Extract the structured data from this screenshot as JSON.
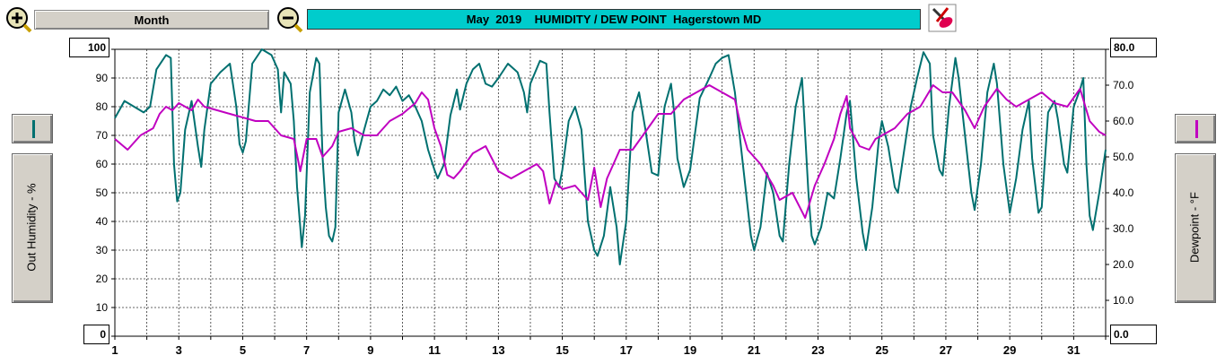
{
  "toolbar": {
    "zoom_in_icon": "zoom-in-magnifier-icon",
    "zoom_out_icon": "zoom-out-magnifier-icon",
    "period_label": "Month",
    "title": "May  2019    HUMIDITY / DEW POINT  Hagerstown MD",
    "settings_icon": "eraser-pencil-icon",
    "title_bg_color": "#00cccc"
  },
  "left_axis": {
    "label": "Out Humidity - %",
    "max_box": "100",
    "min_box": "0",
    "series_color": "#007070"
  },
  "right_axis": {
    "label": "Dewpoint - °F",
    "max_box": "80.0",
    "min_box": "0.0",
    "series_color": "#c000c0"
  },
  "chart_data": {
    "type": "line",
    "title": "May  2019    HUMIDITY / DEW POINT  Hagerstown MD",
    "xlabel": "",
    "x_tick_labels": [
      "1",
      "3",
      "5",
      "7",
      "9",
      "11",
      "13",
      "15",
      "17",
      "19",
      "21",
      "23",
      "25",
      "27",
      "29",
      "31"
    ],
    "x_range": [
      1,
      32
    ],
    "y_left": {
      "label": "Out Humidity - %",
      "range": [
        0,
        100
      ],
      "ticks": [
        "100",
        "90",
        "80",
        "70",
        "60",
        "50",
        "40",
        "30",
        "20",
        "10",
        "0"
      ]
    },
    "y_right": {
      "label": "Dewpoint - °F",
      "range": [
        0,
        80
      ],
      "ticks": [
        "80.0",
        "70.0",
        "60.0",
        "50.0",
        "40.0",
        "30.0",
        "20.0",
        "10.0",
        "0.0"
      ]
    },
    "grid": true,
    "series": [
      {
        "axis": "left",
        "color": "#007070",
        "points": [
          [
            1.0,
            76
          ],
          [
            1.3,
            82
          ],
          [
            1.6,
            80
          ],
          [
            1.9,
            78
          ],
          [
            2.1,
            80
          ],
          [
            2.3,
            93
          ],
          [
            2.6,
            98
          ],
          [
            2.75,
            97
          ],
          [
            2.85,
            60
          ],
          [
            2.95,
            47
          ],
          [
            3.05,
            50
          ],
          [
            3.2,
            72
          ],
          [
            3.4,
            82
          ],
          [
            3.6,
            66
          ],
          [
            3.7,
            59
          ],
          [
            3.8,
            72
          ],
          [
            4.0,
            88
          ],
          [
            4.3,
            92
          ],
          [
            4.6,
            95
          ],
          [
            4.8,
            80
          ],
          [
            4.9,
            67
          ],
          [
            5.0,
            64
          ],
          [
            5.1,
            68
          ],
          [
            5.3,
            95
          ],
          [
            5.6,
            100
          ],
          [
            5.9,
            98
          ],
          [
            6.1,
            93
          ],
          [
            6.2,
            78
          ],
          [
            6.3,
            92
          ],
          [
            6.5,
            88
          ],
          [
            6.6,
            75
          ],
          [
            6.7,
            52
          ],
          [
            6.8,
            38
          ],
          [
            6.85,
            31
          ],
          [
            6.95,
            42
          ],
          [
            7.1,
            85
          ],
          [
            7.3,
            97
          ],
          [
            7.4,
            95
          ],
          [
            7.5,
            62
          ],
          [
            7.6,
            45
          ],
          [
            7.7,
            35
          ],
          [
            7.8,
            33
          ],
          [
            7.9,
            38
          ],
          [
            8.0,
            78
          ],
          [
            8.2,
            86
          ],
          [
            8.4,
            78
          ],
          [
            8.5,
            68
          ],
          [
            8.6,
            63
          ],
          [
            8.8,
            72
          ],
          [
            9.0,
            80
          ],
          [
            9.2,
            82
          ],
          [
            9.4,
            86
          ],
          [
            9.6,
            84
          ],
          [
            9.8,
            87
          ],
          [
            10.0,
            82
          ],
          [
            10.2,
            84
          ],
          [
            10.4,
            80
          ],
          [
            10.6,
            75
          ],
          [
            10.8,
            65
          ],
          [
            11.0,
            58
          ],
          [
            11.1,
            55
          ],
          [
            11.3,
            60
          ],
          [
            11.5,
            77
          ],
          [
            11.7,
            86
          ],
          [
            11.8,
            79
          ],
          [
            12.0,
            88
          ],
          [
            12.2,
            93
          ],
          [
            12.4,
            95
          ],
          [
            12.6,
            88
          ],
          [
            12.8,
            87
          ],
          [
            13.0,
            90
          ],
          [
            13.3,
            95
          ],
          [
            13.6,
            92
          ],
          [
            13.8,
            85
          ],
          [
            13.9,
            78
          ],
          [
            14.0,
            88
          ],
          [
            14.3,
            96
          ],
          [
            14.5,
            95
          ],
          [
            14.6,
            78
          ],
          [
            14.75,
            55
          ],
          [
            14.9,
            52
          ],
          [
            15.0,
            58
          ],
          [
            15.2,
            75
          ],
          [
            15.4,
            80
          ],
          [
            15.6,
            72
          ],
          [
            15.8,
            40
          ],
          [
            16.0,
            30
          ],
          [
            16.1,
            28
          ],
          [
            16.3,
            35
          ],
          [
            16.5,
            52
          ],
          [
            16.7,
            38
          ],
          [
            16.8,
            25
          ],
          [
            17.0,
            40
          ],
          [
            17.2,
            78
          ],
          [
            17.4,
            85
          ],
          [
            17.6,
            72
          ],
          [
            17.8,
            57
          ],
          [
            18.0,
            56
          ],
          [
            18.2,
            80
          ],
          [
            18.4,
            88
          ],
          [
            18.5,
            78
          ],
          [
            18.6,
            62
          ],
          [
            18.8,
            52
          ],
          [
            19.0,
            58
          ],
          [
            19.3,
            83
          ],
          [
            19.6,
            90
          ],
          [
            19.8,
            95
          ],
          [
            20.0,
            97
          ],
          [
            20.2,
            98
          ],
          [
            20.4,
            85
          ],
          [
            20.6,
            65
          ],
          [
            20.8,
            45
          ],
          [
            20.9,
            35
          ],
          [
            21.0,
            30
          ],
          [
            21.2,
            38
          ],
          [
            21.4,
            57
          ],
          [
            21.6,
            50
          ],
          [
            21.8,
            35
          ],
          [
            21.9,
            33
          ],
          [
            22.1,
            60
          ],
          [
            22.3,
            80
          ],
          [
            22.5,
            90
          ],
          [
            22.7,
            50
          ],
          [
            22.8,
            35
          ],
          [
            22.9,
            32
          ],
          [
            23.1,
            38
          ],
          [
            23.3,
            50
          ],
          [
            23.5,
            48
          ],
          [
            23.7,
            62
          ],
          [
            23.9,
            78
          ],
          [
            24.0,
            82
          ],
          [
            24.2,
            55
          ],
          [
            24.4,
            36
          ],
          [
            24.5,
            30
          ],
          [
            24.7,
            45
          ],
          [
            24.9,
            68
          ],
          [
            25.0,
            75
          ],
          [
            25.2,
            66
          ],
          [
            25.4,
            52
          ],
          [
            25.5,
            50
          ],
          [
            25.7,
            65
          ],
          [
            25.9,
            80
          ],
          [
            26.1,
            90
          ],
          [
            26.3,
            99
          ],
          [
            26.5,
            95
          ],
          [
            26.6,
            70
          ],
          [
            26.8,
            58
          ],
          [
            26.9,
            56
          ],
          [
            27.1,
            80
          ],
          [
            27.3,
            97
          ],
          [
            27.4,
            90
          ],
          [
            27.6,
            70
          ],
          [
            27.8,
            50
          ],
          [
            27.9,
            44
          ],
          [
            28.1,
            60
          ],
          [
            28.3,
            85
          ],
          [
            28.5,
            95
          ],
          [
            28.6,
            88
          ],
          [
            28.8,
            60
          ],
          [
            29.0,
            43
          ],
          [
            29.2,
            55
          ],
          [
            29.4,
            72
          ],
          [
            29.6,
            82
          ],
          [
            29.7,
            62
          ],
          [
            29.9,
            43
          ],
          [
            30.0,
            45
          ],
          [
            30.2,
            78
          ],
          [
            30.4,
            82
          ],
          [
            30.5,
            76
          ],
          [
            30.7,
            60
          ],
          [
            30.8,
            57
          ],
          [
            31.0,
            80
          ],
          [
            31.2,
            86
          ],
          [
            31.3,
            90
          ],
          [
            31.4,
            60
          ],
          [
            31.5,
            42
          ],
          [
            31.6,
            37
          ],
          [
            31.8,
            50
          ],
          [
            32.0,
            65
          ]
        ]
      },
      {
        "axis": "right",
        "color": "#c000c0",
        "points": [
          [
            1.0,
            55
          ],
          [
            1.4,
            52
          ],
          [
            1.8,
            56
          ],
          [
            2.2,
            58
          ],
          [
            2.4,
            62
          ],
          [
            2.6,
            64
          ],
          [
            2.8,
            63
          ],
          [
            3.0,
            65
          ],
          [
            3.4,
            63
          ],
          [
            3.6,
            66
          ],
          [
            3.8,
            64
          ],
          [
            4.2,
            63
          ],
          [
            4.6,
            62
          ],
          [
            5.0,
            61
          ],
          [
            5.4,
            60
          ],
          [
            5.8,
            60
          ],
          [
            6.2,
            56
          ],
          [
            6.6,
            55
          ],
          [
            6.8,
            46
          ],
          [
            7.0,
            55
          ],
          [
            7.3,
            55
          ],
          [
            7.5,
            50
          ],
          [
            7.8,
            53
          ],
          [
            8.0,
            57
          ],
          [
            8.4,
            58
          ],
          [
            8.8,
            56
          ],
          [
            9.2,
            56
          ],
          [
            9.6,
            60
          ],
          [
            10.0,
            62
          ],
          [
            10.4,
            65
          ],
          [
            10.6,
            68
          ],
          [
            10.8,
            66
          ],
          [
            11.0,
            58
          ],
          [
            11.2,
            53
          ],
          [
            11.4,
            45
          ],
          [
            11.6,
            44
          ],
          [
            11.8,
            46
          ],
          [
            12.2,
            51
          ],
          [
            12.6,
            53
          ],
          [
            13.0,
            46
          ],
          [
            13.4,
            44
          ],
          [
            13.8,
            46
          ],
          [
            14.2,
            48
          ],
          [
            14.4,
            46
          ],
          [
            14.6,
            37
          ],
          [
            14.8,
            43
          ],
          [
            15.0,
            41
          ],
          [
            15.4,
            42
          ],
          [
            15.8,
            38
          ],
          [
            16.0,
            47
          ],
          [
            16.2,
            36
          ],
          [
            16.4,
            44
          ],
          [
            16.8,
            52
          ],
          [
            17.2,
            52
          ],
          [
            17.6,
            57
          ],
          [
            18.0,
            62
          ],
          [
            18.4,
            62
          ],
          [
            18.8,
            66
          ],
          [
            19.2,
            68
          ],
          [
            19.6,
            70
          ],
          [
            20.0,
            68
          ],
          [
            20.4,
            66
          ],
          [
            20.6,
            58
          ],
          [
            20.8,
            52
          ],
          [
            21.2,
            48
          ],
          [
            21.6,
            42
          ],
          [
            21.8,
            38
          ],
          [
            22.2,
            40
          ],
          [
            22.6,
            33
          ],
          [
            22.9,
            42
          ],
          [
            23.2,
            48
          ],
          [
            23.5,
            55
          ],
          [
            23.7,
            62
          ],
          [
            23.9,
            67
          ],
          [
            24.0,
            58
          ],
          [
            24.3,
            53
          ],
          [
            24.6,
            52
          ],
          [
            24.8,
            55
          ],
          [
            25.0,
            56
          ],
          [
            25.4,
            58
          ],
          [
            25.8,
            62
          ],
          [
            26.2,
            64
          ],
          [
            26.6,
            70
          ],
          [
            26.9,
            68
          ],
          [
            27.2,
            68
          ],
          [
            27.6,
            63
          ],
          [
            27.9,
            58
          ],
          [
            28.2,
            64
          ],
          [
            28.6,
            69
          ],
          [
            28.9,
            66
          ],
          [
            29.2,
            64
          ],
          [
            29.6,
            66
          ],
          [
            30.0,
            68
          ],
          [
            30.4,
            65
          ],
          [
            30.8,
            64
          ],
          [
            31.2,
            69
          ],
          [
            31.5,
            60
          ],
          [
            31.8,
            57
          ],
          [
            32.0,
            56
          ]
        ]
      }
    ]
  }
}
